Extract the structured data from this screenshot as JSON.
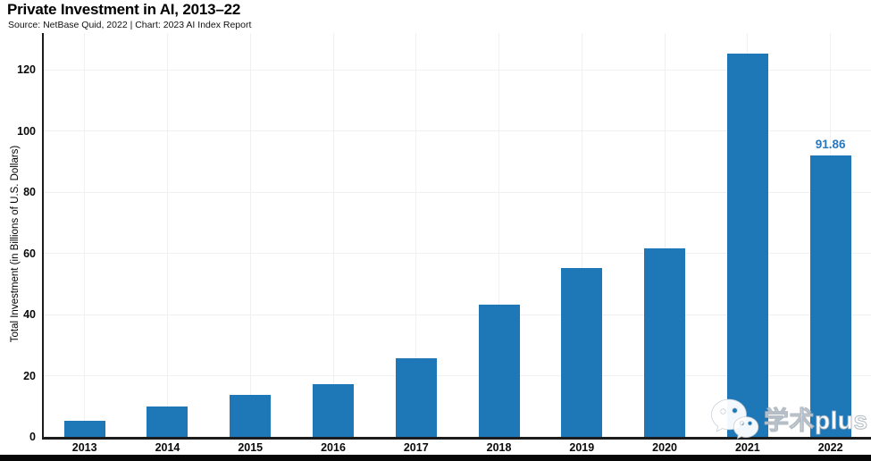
{
  "chart_data": {
    "type": "bar",
    "title": "Private Investment in AI, 2013–22",
    "subtitle": "Source: NetBase Quid, 2022 | Chart: 2023 AI Index Report",
    "categories": [
      "2013",
      "2014",
      "2015",
      "2016",
      "2017",
      "2018",
      "2019",
      "2020",
      "2021",
      "2022"
    ],
    "values": [
      5.2,
      10.0,
      13.7,
      17.2,
      25.8,
      43.3,
      55.2,
      61.7,
      125.4,
      91.86
    ],
    "bar_labels": [
      "",
      "",
      "",
      "",
      "",
      "",
      "",
      "",
      "",
      "91.86"
    ],
    "xlabel": "",
    "ylabel": "Total Investment (in Billions of U.S. Dollars)",
    "ylim": [
      0,
      132
    ],
    "yticks": [
      0,
      20,
      40,
      60,
      80,
      100,
      120
    ],
    "grid": true,
    "legend": "none",
    "bar_color": "#1e78b8",
    "data_label_color": "#2878be"
  },
  "watermark": {
    "text": "学术plus",
    "icon": "wechat-logo"
  },
  "colors": {
    "background": "#ffffff",
    "axis": "#1c1c1c",
    "gridline": "#f0f0f1",
    "bottom_bar": "#070707",
    "text": "#000000"
  }
}
